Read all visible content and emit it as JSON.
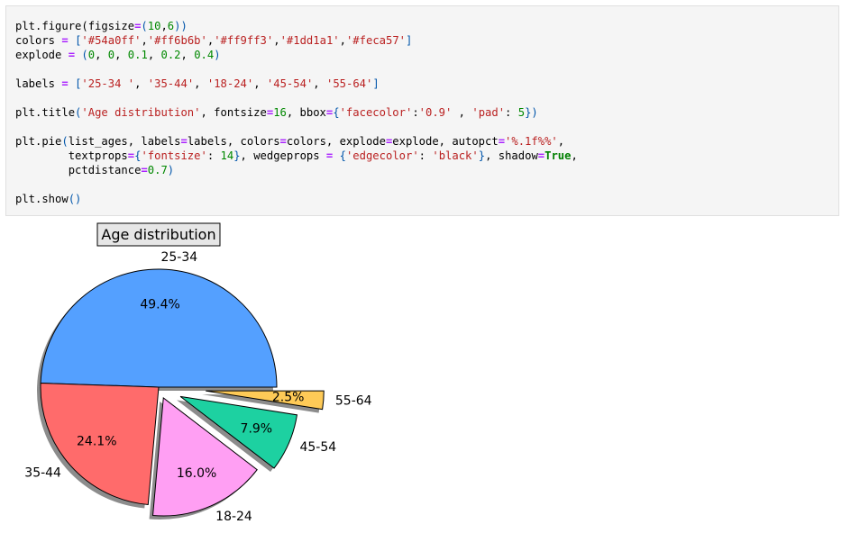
{
  "code_lines": [
    [
      [
        "t",
        "plt.figure(figsize"
      ],
      [
        "op",
        "="
      ],
      [
        "p",
        "("
      ],
      [
        "num",
        "10"
      ],
      [
        "t",
        ","
      ],
      [
        "num",
        "6"
      ],
      [
        "p",
        "))"
      ]
    ],
    [
      [
        "t",
        "colors "
      ],
      [
        "op",
        "="
      ],
      [
        "t",
        " "
      ],
      [
        "p",
        "["
      ],
      [
        "str",
        "'#54a0ff'"
      ],
      [
        "t",
        ","
      ],
      [
        "str",
        "'#ff6b6b'"
      ],
      [
        "t",
        ","
      ],
      [
        "str",
        "'#ff9ff3'"
      ],
      [
        "t",
        ","
      ],
      [
        "str",
        "'#1dd1a1'"
      ],
      [
        "t",
        ","
      ],
      [
        "str",
        "'#feca57'"
      ],
      [
        "p",
        "]"
      ]
    ],
    [
      [
        "t",
        "explode "
      ],
      [
        "op",
        "="
      ],
      [
        "t",
        " "
      ],
      [
        "p",
        "("
      ],
      [
        "num",
        "0"
      ],
      [
        "t",
        ", "
      ],
      [
        "num",
        "0"
      ],
      [
        "t",
        ", "
      ],
      [
        "num",
        "0.1"
      ],
      [
        "t",
        ", "
      ],
      [
        "num",
        "0.2"
      ],
      [
        "t",
        ", "
      ],
      [
        "num",
        "0.4"
      ],
      [
        "p",
        ")"
      ]
    ],
    [],
    [
      [
        "t",
        "labels "
      ],
      [
        "op",
        "="
      ],
      [
        "t",
        " "
      ],
      [
        "p",
        "["
      ],
      [
        "str",
        "'25-34 '"
      ],
      [
        "t",
        ", "
      ],
      [
        "str",
        "'35-44'"
      ],
      [
        "t",
        ", "
      ],
      [
        "str",
        "'18-24'"
      ],
      [
        "t",
        ", "
      ],
      [
        "str",
        "'45-54'"
      ],
      [
        "t",
        ", "
      ],
      [
        "str",
        "'55-64'"
      ],
      [
        "p",
        "]"
      ]
    ],
    [],
    [
      [
        "t",
        "plt.title"
      ],
      [
        "p",
        "("
      ],
      [
        "str",
        "'Age distribution'"
      ],
      [
        "t",
        ", fontsize"
      ],
      [
        "op",
        "="
      ],
      [
        "num",
        "16"
      ],
      [
        "t",
        ", bbox"
      ],
      [
        "op",
        "="
      ],
      [
        "p",
        "{"
      ],
      [
        "str",
        "'facecolor'"
      ],
      [
        "t",
        ":"
      ],
      [
        "str",
        "'0.9'"
      ],
      [
        "t",
        " , "
      ],
      [
        "str",
        "'pad'"
      ],
      [
        "t",
        ": "
      ],
      [
        "num",
        "5"
      ],
      [
        "p",
        "})"
      ]
    ],
    [],
    [
      [
        "t",
        "plt.pie"
      ],
      [
        "p",
        "("
      ],
      [
        "t",
        "list_ages, labels"
      ],
      [
        "op",
        "="
      ],
      [
        "t",
        "labels, colors"
      ],
      [
        "op",
        "="
      ],
      [
        "t",
        "colors, explode"
      ],
      [
        "op",
        "="
      ],
      [
        "t",
        "explode, autopct"
      ],
      [
        "op",
        "="
      ],
      [
        "str",
        "'%.1f%%'"
      ],
      [
        "t",
        ","
      ]
    ],
    [
      [
        "t",
        "        textprops"
      ],
      [
        "op",
        "="
      ],
      [
        "p",
        "{"
      ],
      [
        "str",
        "'fontsize'"
      ],
      [
        "t",
        ": "
      ],
      [
        "num",
        "14"
      ],
      [
        "p",
        "}"
      ],
      [
        "t",
        ", wedgeprops "
      ],
      [
        "op",
        "="
      ],
      [
        "t",
        " "
      ],
      [
        "p",
        "{"
      ],
      [
        "str",
        "'edgecolor'"
      ],
      [
        "t",
        ": "
      ],
      [
        "str",
        "'black'"
      ],
      [
        "p",
        "}"
      ],
      [
        "t",
        ", shadow"
      ],
      [
        "op",
        "="
      ],
      [
        "kw",
        "True"
      ],
      [
        "t",
        ","
      ]
    ],
    [
      [
        "t",
        "        pctdistance"
      ],
      [
        "op",
        "="
      ],
      [
        "num",
        "0.7"
      ],
      [
        "p",
        ")"
      ]
    ],
    [],
    [
      [
        "t",
        "plt.show"
      ],
      [
        "p",
        "()"
      ]
    ]
  ],
  "chart_data": {
    "type": "pie",
    "title": "Age distribution",
    "labels": [
      "25-34",
      "35-44",
      "18-24",
      "45-54",
      "55-64"
    ],
    "values": [
      49.4,
      24.1,
      16.0,
      7.9,
      2.5
    ],
    "value_labels": [
      "49.4%",
      "24.1%",
      "16.0%",
      "7.9%",
      "2.5%"
    ],
    "colors": [
      "#54a0ff",
      "#ff6b6b",
      "#ff9ff3",
      "#1dd1a1",
      "#feca57"
    ],
    "explode": [
      0,
      0,
      0.1,
      0.2,
      0.4
    ],
    "start_angle_deg": 0,
    "direction": "counterclockwise",
    "pct_distance": 0.7,
    "label_distance": 1.1,
    "edge_color": "#000000",
    "shadow": true
  }
}
